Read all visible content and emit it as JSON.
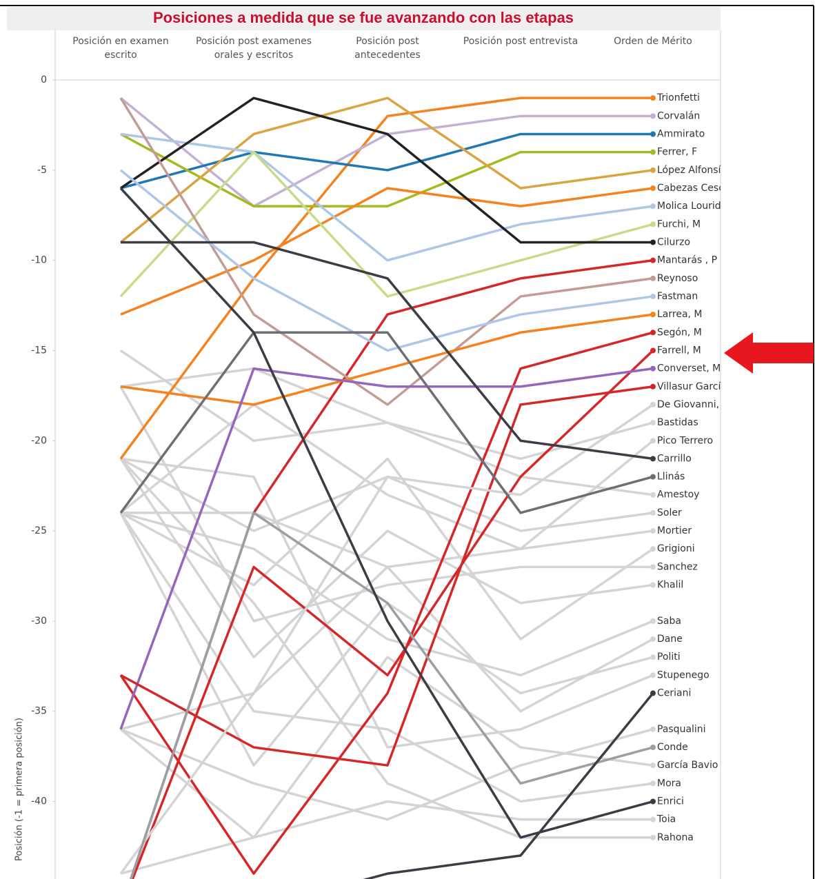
{
  "chart_data": {
    "type": "line",
    "title": "Posiciones a medida que se fue avanzando con las etapas",
    "y_label": "Posición (-1 = primera posición)",
    "categories": [
      "Posición en examen escrito",
      "Posición post examenes orales y escritos",
      "Posición post antecedentes",
      "Posición post entrevista",
      "Orden de Mérito"
    ],
    "ylim": [
      -44.3,
      0
    ],
    "yticks": [
      0,
      -5,
      -10,
      -15,
      -20,
      -25,
      -30,
      -35,
      -40
    ],
    "series": [
      {
        "name": "Bastidas",
        "color": "#d4d4d4",
        "values": [
          -15,
          -20,
          -19,
          -21,
          -19
        ]
      },
      {
        "name": "Pico Terrero",
        "color": "#d4d4d4",
        "values": [
          -24,
          -18,
          -23,
          -26,
          -20
        ]
      },
      {
        "name": "Amestoy",
        "color": "#d4d4d4",
        "values": [
          -17,
          -16,
          -19,
          -22,
          -23
        ]
      },
      {
        "name": "Soler",
        "color": "#d4d4d4",
        "values": [
          -21,
          -25,
          -22,
          -25,
          -24
        ]
      },
      {
        "name": "Mortier",
        "color": "#d4d4d4",
        "values": [
          -24,
          -24,
          -27,
          -26,
          -25
        ]
      },
      {
        "name": "Grigioni",
        "color": "#d4d4d4",
        "values": [
          -24,
          -28,
          -21,
          -31,
          -26
        ]
      },
      {
        "name": "Sanchez",
        "color": "#d4d4d4",
        "values": [
          -17,
          -30,
          -28,
          -27,
          -27
        ]
      },
      {
        "name": "Khalil",
        "color": "#d4d4d4",
        "values": [
          -21,
          -32,
          -25,
          -29,
          -28
        ]
      },
      {
        "name": "Saba",
        "color": "#d4d4d4",
        "values": [
          -24,
          -26,
          -31,
          -33,
          -30
        ]
      },
      {
        "name": "Dane",
        "color": "#d4d4d4",
        "values": [
          -36,
          -34,
          -27,
          -35,
          -31
        ]
      },
      {
        "name": "Politi",
        "color": "#d4d4d4",
        "values": [
          -24,
          -38,
          -29,
          -34,
          -32
        ]
      },
      {
        "name": "Stupenego",
        "color": "#d4d4d4",
        "values": [
          -21,
          -22,
          -37,
          -36,
          -33
        ]
      },
      {
        "name": "Pasqualini",
        "color": "#d4d4d4",
        "values": [
          -36,
          -39,
          -41,
          -38,
          -36
        ]
      },
      {
        "name": "García Bavio",
        "color": "#d4d4d4",
        "values": [
          -44,
          -42,
          -32,
          -37,
          -38
        ]
      },
      {
        "name": "Mora",
        "color": "#d4d4d4",
        "values": [
          -24,
          -35,
          -36,
          -40,
          -39
        ]
      },
      {
        "name": "Toia",
        "color": "#d4d4d4",
        "values": [
          -36,
          -42,
          -40,
          -41,
          -41
        ]
      },
      {
        "name": "Rahona",
        "color": "#d4d4d4",
        "values": [
          -21,
          -29,
          -39,
          -42,
          -42
        ]
      },
      {
        "name": "Trionfetti",
        "color": "#f5821f",
        "values": [
          -21,
          -11,
          -2,
          -1,
          -1
        ]
      },
      {
        "name": "Corvalán",
        "color": "#c5b0d5",
        "values": [
          -1,
          -7,
          -3,
          -2,
          -2
        ]
      },
      {
        "name": "Ammirato",
        "color": "#1f77b4",
        "values": [
          -6,
          -4,
          -5,
          -3,
          -3
        ]
      },
      {
        "name": "Ferrer, F",
        "color": "#a8b820",
        "values": [
          -3,
          -7,
          -7,
          -4,
          -4
        ]
      },
      {
        "name": "López Alfonsín,",
        "color": "#d9a441",
        "values": [
          -9,
          -3,
          -1,
          -6,
          -5
        ]
      },
      {
        "name": "Cabezas Cescato",
        "color": "#f5821f",
        "values": [
          -13,
          -10,
          -6,
          -7,
          -6
        ]
      },
      {
        "name": "Molica Lourido",
        "color": "#aec7e8",
        "values": [
          -3,
          -4,
          -10,
          -8,
          -7
        ]
      },
      {
        "name": "Furchi, M",
        "color": "#c7dc8a",
        "values": [
          -12,
          -4,
          -12,
          -10,
          -8
        ]
      },
      {
        "name": "Cilurzo",
        "color": "#222222",
        "values": [
          -6,
          -1,
          -3,
          -9,
          -9
        ]
      },
      {
        "name": "Mantarás , P",
        "color": "#d62728",
        "values": [
          -46,
          -24,
          -13,
          -11,
          -10
        ]
      },
      {
        "name": "Reynoso",
        "color": "#c49c94",
        "values": [
          -1,
          -13,
          -18,
          -12,
          -11
        ]
      },
      {
        "name": "Fastman",
        "color": "#aec7e8",
        "values": [
          -5,
          -11,
          -15,
          -13,
          -12
        ]
      },
      {
        "name": "Larrea, M",
        "color": "#f5821f",
        "values": [
          -17,
          -18,
          -16,
          -14,
          -13
        ]
      },
      {
        "name": "Segón, M",
        "color": "#d62728",
        "values": [
          -33,
          -44,
          -34,
          -16,
          -14
        ]
      },
      {
        "name": "Farrell, M",
        "color": "#d62728",
        "values": [
          -46,
          -27,
          -33,
          -22,
          -15
        ]
      },
      {
        "name": "Converset, M",
        "color": "#9467bd",
        "values": [
          -36,
          -16,
          -17,
          -17,
          -16
        ]
      },
      {
        "name": "Villasur García",
        "color": "#d62728",
        "values": [
          -33,
          -37,
          -38,
          -18,
          -17
        ]
      },
      {
        "name": "De Giovanni, P",
        "color": "#d4d4d4",
        "values": [
          -44,
          -34,
          -22,
          -23,
          -18
        ]
      },
      {
        "name": "Carrillo",
        "color": "#3c3c46",
        "values": [
          -9,
          -9,
          -11,
          -20,
          -21
        ]
      },
      {
        "name": "Llinás",
        "color": "#6e6e76",
        "values": [
          -24,
          -14,
          -14,
          -24,
          -22
        ]
      },
      {
        "name": "Conde",
        "color": "#9aa0a6",
        "values": [
          -46,
          -24,
          -29,
          -39,
          -37
        ]
      },
      {
        "name": "Ceriani",
        "color": "#3c3c46",
        "values": [
          -46,
          -46,
          -44,
          -43,
          -34
        ]
      },
      {
        "name": "Enrici",
        "color": "#3c3c46",
        "values": [
          -6,
          -14,
          -30,
          -42,
          -40
        ]
      }
    ]
  }
}
